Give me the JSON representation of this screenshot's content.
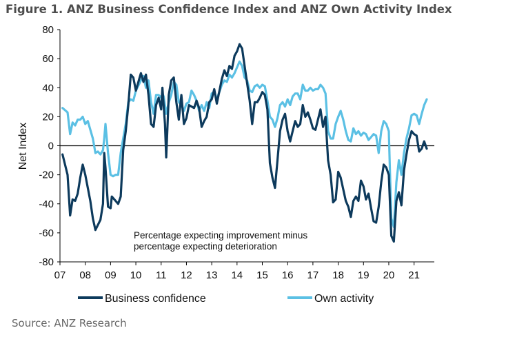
{
  "figure": {
    "title": "Figure 1. ANZ Business Confidence Index and ANZ Own Activity Index",
    "source": "Source: ANZ Research"
  },
  "chart_data": {
    "type": "line",
    "title": "Figure 1. ANZ Business Confidence Index and ANZ Own Activity Index",
    "ylabel": "Net Index",
    "xlabel": "",
    "ylim": [
      -80,
      80
    ],
    "yticks": [
      -80,
      -60,
      -40,
      -20,
      0,
      20,
      40,
      60,
      80
    ],
    "xlim": [
      2007.0,
      2021.8
    ],
    "xticks": [
      {
        "value": 2007,
        "label": "07"
      },
      {
        "value": 2008,
        "label": "08"
      },
      {
        "value": 2009,
        "label": "09"
      },
      {
        "value": 2010,
        "label": "10"
      },
      {
        "value": 2011,
        "label": "11"
      },
      {
        "value": 2012,
        "label": "12"
      },
      {
        "value": 2013,
        "label": "13"
      },
      {
        "value": 2014,
        "label": "14"
      },
      {
        "value": 2015,
        "label": "15"
      },
      {
        "value": 2016,
        "label": "16"
      },
      {
        "value": 2017,
        "label": "17"
      },
      {
        "value": 2018,
        "label": "18"
      },
      {
        "value": 2019,
        "label": "19"
      },
      {
        "value": 2020,
        "label": "20"
      },
      {
        "value": 2021,
        "label": "21"
      }
    ],
    "annotation": [
      "Percentage expecting improvement minus",
      "percentage expecting deterioration"
    ],
    "legend_position": "bottom",
    "series": [
      {
        "name": "Business confidence",
        "color": "#0d3a5c",
        "points": [
          [
            2007.1,
            -6
          ],
          [
            2007.3,
            -20
          ],
          [
            2007.4,
            -48
          ],
          [
            2007.5,
            -37
          ],
          [
            2007.6,
            -38
          ],
          [
            2007.7,
            -33
          ],
          [
            2007.8,
            -22
          ],
          [
            2007.9,
            -13
          ],
          [
            2008.0,
            -20
          ],
          [
            2008.2,
            -38
          ],
          [
            2008.3,
            -50
          ],
          [
            2008.4,
            -58
          ],
          [
            2008.6,
            -51
          ],
          [
            2008.7,
            -40
          ],
          [
            2008.75,
            -5
          ],
          [
            2008.8,
            -15
          ],
          [
            2008.9,
            -42
          ],
          [
            2009.0,
            -43
          ],
          [
            2009.05,
            -35
          ],
          [
            2009.2,
            -38
          ],
          [
            2009.3,
            -40
          ],
          [
            2009.4,
            -35
          ],
          [
            2009.5,
            -3
          ],
          [
            2009.6,
            10
          ],
          [
            2009.7,
            28
          ],
          [
            2009.8,
            49
          ],
          [
            2009.9,
            47
          ],
          [
            2010.0,
            38
          ],
          [
            2010.2,
            50
          ],
          [
            2010.3,
            44
          ],
          [
            2010.4,
            49
          ],
          [
            2010.5,
            35
          ],
          [
            2010.6,
            15
          ],
          [
            2010.7,
            13
          ],
          [
            2010.8,
            28
          ],
          [
            2010.9,
            33
          ],
          [
            2011.0,
            25
          ],
          [
            2011.05,
            40
          ],
          [
            2011.15,
            15
          ],
          [
            2011.2,
            -8
          ],
          [
            2011.3,
            35
          ],
          [
            2011.4,
            45
          ],
          [
            2011.5,
            47
          ],
          [
            2011.6,
            30
          ],
          [
            2011.7,
            18
          ],
          [
            2011.8,
            35
          ],
          [
            2011.9,
            15
          ],
          [
            2012.0,
            19
          ],
          [
            2012.1,
            28
          ],
          [
            2012.3,
            26
          ],
          [
            2012.4,
            31
          ],
          [
            2012.5,
            26
          ],
          [
            2012.6,
            13
          ],
          [
            2012.7,
            17
          ],
          [
            2012.8,
            20
          ],
          [
            2012.9,
            30
          ],
          [
            2013.0,
            32
          ],
          [
            2013.1,
            39
          ],
          [
            2013.2,
            29
          ],
          [
            2013.4,
            46
          ],
          [
            2013.5,
            52
          ],
          [
            2013.6,
            48
          ],
          [
            2013.7,
            55
          ],
          [
            2013.8,
            53
          ],
          [
            2013.9,
            62
          ],
          [
            2014.0,
            65
          ],
          [
            2014.1,
            70
          ],
          [
            2014.2,
            67
          ],
          [
            2014.3,
            55
          ],
          [
            2014.4,
            43
          ],
          [
            2014.5,
            31
          ],
          [
            2014.6,
            15
          ],
          [
            2014.7,
            30
          ],
          [
            2014.8,
            30
          ],
          [
            2014.9,
            33
          ],
          [
            2015.0,
            37
          ],
          [
            2015.1,
            35
          ],
          [
            2015.2,
            25
          ],
          [
            2015.3,
            -12
          ],
          [
            2015.4,
            -22
          ],
          [
            2015.5,
            -29
          ],
          [
            2015.6,
            -10
          ],
          [
            2015.7,
            10
          ],
          [
            2015.8,
            18
          ],
          [
            2015.9,
            22
          ],
          [
            2016.0,
            10
          ],
          [
            2016.1,
            3
          ],
          [
            2016.2,
            10
          ],
          [
            2016.3,
            17
          ],
          [
            2016.4,
            13
          ],
          [
            2016.5,
            15
          ],
          [
            2016.6,
            28
          ],
          [
            2016.7,
            20
          ],
          [
            2016.8,
            23
          ],
          [
            2016.9,
            18
          ],
          [
            2017.0,
            12
          ],
          [
            2017.1,
            11
          ],
          [
            2017.3,
            25
          ],
          [
            2017.4,
            13
          ],
          [
            2017.5,
            20
          ],
          [
            2017.6,
            -10
          ],
          [
            2017.7,
            -20
          ],
          [
            2017.8,
            -39
          ],
          [
            2017.9,
            -37
          ],
          [
            2018.0,
            -18
          ],
          [
            2018.1,
            -22
          ],
          [
            2018.2,
            -30
          ],
          [
            2018.3,
            -38
          ],
          [
            2018.4,
            -42
          ],
          [
            2018.5,
            -49
          ],
          [
            2018.6,
            -38
          ],
          [
            2018.7,
            -35
          ],
          [
            2018.8,
            -38
          ],
          [
            2018.9,
            -24
          ],
          [
            2019.0,
            -28
          ],
          [
            2019.1,
            -37
          ],
          [
            2019.2,
            -33
          ],
          [
            2019.3,
            -43
          ],
          [
            2019.4,
            -52
          ],
          [
            2019.5,
            -53
          ],
          [
            2019.6,
            -42
          ],
          [
            2019.7,
            -25
          ],
          [
            2019.8,
            -13
          ],
          [
            2019.9,
            -15
          ],
          [
            2020.0,
            -20
          ],
          [
            2020.1,
            -62
          ],
          [
            2020.2,
            -66
          ],
          [
            2020.3,
            -38
          ],
          [
            2020.4,
            -32
          ],
          [
            2020.5,
            -41
          ],
          [
            2020.6,
            -17
          ],
          [
            2020.7,
            -6
          ],
          [
            2020.8,
            4
          ],
          [
            2020.9,
            10
          ],
          [
            2021.0,
            8
          ],
          [
            2021.1,
            7
          ],
          [
            2021.2,
            -4
          ],
          [
            2021.3,
            -2
          ],
          [
            2021.4,
            3
          ],
          [
            2021.5,
            -2
          ]
        ]
      },
      {
        "name": "Own activity",
        "color": "#5bc0e4",
        "points": [
          [
            2007.1,
            26
          ],
          [
            2007.3,
            23
          ],
          [
            2007.4,
            8
          ],
          [
            2007.5,
            16
          ],
          [
            2007.6,
            14
          ],
          [
            2007.7,
            18
          ],
          [
            2007.8,
            18
          ],
          [
            2007.9,
            20
          ],
          [
            2008.0,
            15
          ],
          [
            2008.1,
            17
          ],
          [
            2008.3,
            5
          ],
          [
            2008.4,
            -5
          ],
          [
            2008.5,
            -4
          ],
          [
            2008.6,
            -6
          ],
          [
            2008.7,
            -3
          ],
          [
            2008.75,
            5
          ],
          [
            2008.8,
            15
          ],
          [
            2008.9,
            -5
          ],
          [
            2009.0,
            -20
          ],
          [
            2009.1,
            -21
          ],
          [
            2009.2,
            -20
          ],
          [
            2009.3,
            -20
          ],
          [
            2009.4,
            -5
          ],
          [
            2009.5,
            5
          ],
          [
            2009.6,
            15
          ],
          [
            2009.7,
            30
          ],
          [
            2009.8,
            32
          ],
          [
            2009.9,
            31
          ],
          [
            2010.0,
            38
          ],
          [
            2010.2,
            45
          ],
          [
            2010.3,
            48
          ],
          [
            2010.4,
            40
          ],
          [
            2010.5,
            45
          ],
          [
            2010.6,
            30
          ],
          [
            2010.7,
            22
          ],
          [
            2010.8,
            35
          ],
          [
            2010.9,
            35
          ],
          [
            2011.0,
            33
          ],
          [
            2011.05,
            36
          ],
          [
            2011.1,
            34
          ],
          [
            2011.2,
            22
          ],
          [
            2011.3,
            30
          ],
          [
            2011.4,
            35
          ],
          [
            2011.5,
            44
          ],
          [
            2011.6,
            42
          ],
          [
            2011.7,
            30
          ],
          [
            2011.8,
            28
          ],
          [
            2011.9,
            24
          ],
          [
            2012.0,
            29
          ],
          [
            2012.1,
            30
          ],
          [
            2012.2,
            38
          ],
          [
            2012.3,
            35
          ],
          [
            2012.4,
            31
          ],
          [
            2012.5,
            24
          ],
          [
            2012.6,
            28
          ],
          [
            2012.7,
            24
          ],
          [
            2012.8,
            30
          ],
          [
            2012.9,
            26
          ],
          [
            2013.0,
            36
          ],
          [
            2013.1,
            37
          ],
          [
            2013.2,
            32
          ],
          [
            2013.4,
            42
          ],
          [
            2013.5,
            45
          ],
          [
            2013.6,
            44
          ],
          [
            2013.7,
            49
          ],
          [
            2013.8,
            47
          ],
          [
            2013.9,
            50
          ],
          [
            2014.0,
            54
          ],
          [
            2014.1,
            58
          ],
          [
            2014.2,
            55
          ],
          [
            2014.3,
            47
          ],
          [
            2014.4,
            45
          ],
          [
            2014.5,
            38
          ],
          [
            2014.6,
            37
          ],
          [
            2014.7,
            41
          ],
          [
            2014.8,
            42
          ],
          [
            2014.9,
            40
          ],
          [
            2015.0,
            42
          ],
          [
            2015.1,
            41
          ],
          [
            2015.2,
            31
          ],
          [
            2015.3,
            20
          ],
          [
            2015.4,
            18
          ],
          [
            2015.5,
            13
          ],
          [
            2015.6,
            19
          ],
          [
            2015.7,
            28
          ],
          [
            2015.8,
            30
          ],
          [
            2015.9,
            27
          ],
          [
            2016.0,
            32
          ],
          [
            2016.1,
            28
          ],
          [
            2016.2,
            34
          ],
          [
            2016.3,
            36
          ],
          [
            2016.4,
            36
          ],
          [
            2016.5,
            32
          ],
          [
            2016.6,
            42
          ],
          [
            2016.7,
            38
          ],
          [
            2016.8,
            38
          ],
          [
            2016.9,
            40
          ],
          [
            2017.0,
            38
          ],
          [
            2017.1,
            39
          ],
          [
            2017.2,
            39
          ],
          [
            2017.3,
            42
          ],
          [
            2017.4,
            40
          ],
          [
            2017.5,
            36
          ],
          [
            2017.6,
            10
          ],
          [
            2017.7,
            5
          ],
          [
            2017.8,
            5
          ],
          [
            2017.9,
            15
          ],
          [
            2018.0,
            20
          ],
          [
            2018.1,
            24
          ],
          [
            2018.2,
            18
          ],
          [
            2018.3,
            10
          ],
          [
            2018.4,
            4
          ],
          [
            2018.5,
            3
          ],
          [
            2018.6,
            12
          ],
          [
            2018.7,
            8
          ],
          [
            2018.8,
            10
          ],
          [
            2018.9,
            7
          ],
          [
            2019.0,
            9
          ],
          [
            2019.1,
            8
          ],
          [
            2019.2,
            4
          ],
          [
            2019.3,
            6
          ],
          [
            2019.4,
            8
          ],
          [
            2019.5,
            7
          ],
          [
            2019.6,
            -5
          ],
          [
            2019.7,
            10
          ],
          [
            2019.8,
            17
          ],
          [
            2019.9,
            15
          ],
          [
            2020.0,
            10
          ],
          [
            2020.1,
            -50
          ],
          [
            2020.2,
            -56
          ],
          [
            2020.3,
            -25
          ],
          [
            2020.4,
            -10
          ],
          [
            2020.5,
            -20
          ],
          [
            2020.6,
            -5
          ],
          [
            2020.7,
            5
          ],
          [
            2020.8,
            12
          ],
          [
            2020.9,
            21
          ],
          [
            2021.0,
            22
          ],
          [
            2021.1,
            21
          ],
          [
            2021.2,
            15
          ],
          [
            2021.3,
            22
          ],
          [
            2021.4,
            28
          ],
          [
            2021.5,
            32
          ]
        ]
      }
    ]
  }
}
